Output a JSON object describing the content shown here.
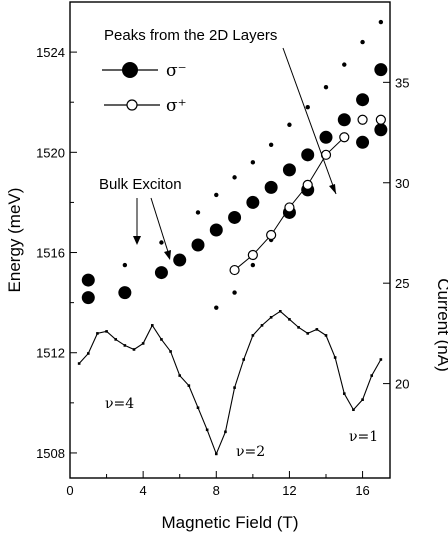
{
  "chart_data": {
    "type": "scatter",
    "xlabel": "Magnetic Field (T)",
    "ylabel": "Energy (meV)",
    "y2label": "Current (nA)",
    "xlim": [
      0,
      17.5
    ],
    "ylim": [
      1507,
      1526
    ],
    "y2lim": [
      15.3,
      39
    ],
    "x_ticks": [
      0,
      4,
      8,
      12,
      16
    ],
    "y_ticks": [
      1508,
      1512,
      1516,
      1520,
      1524
    ],
    "y2_ticks": [
      20,
      25,
      30,
      35
    ],
    "grid": false,
    "legend_position": "top-left",
    "legend": [
      {
        "symbol": "filled-circle",
        "label": "σ⁻"
      },
      {
        "symbol": "open-circle",
        "label": "σ⁺"
      }
    ],
    "annotations": {
      "peaks_2d": "Peaks from the 2D Layers",
      "bulk_exciton": "Bulk Exciton",
      "nu4": "ν=4",
      "nu2": "ν=2",
      "nu1": "ν=1"
    },
    "series": [
      {
        "name": "σ⁻",
        "axis": "left",
        "marker": "filled-circle",
        "points": [
          [
            1,
            1514.9
          ],
          [
            1,
            1514.2
          ],
          [
            3,
            1514.4
          ],
          [
            5,
            1515.2
          ],
          [
            6,
            1515.7
          ],
          [
            7,
            1516.3
          ],
          [
            8,
            1516.9
          ],
          [
            9,
            1517.4
          ],
          [
            10,
            1518.0
          ],
          [
            11,
            1518.6
          ],
          [
            12,
            1519.3
          ],
          [
            13,
            1519.9
          ],
          [
            14,
            1520.6
          ],
          [
            15,
            1521.3
          ],
          [
            16,
            1522.1
          ],
          [
            17,
            1523.3
          ],
          [
            12,
            1517.6
          ],
          [
            13,
            1518.5
          ],
          [
            16,
            1520.4
          ],
          [
            17,
            1520.9
          ]
        ]
      },
      {
        "name": "σ⁻ weak",
        "axis": "left",
        "marker": "small-filled-circle",
        "points": [
          [
            3,
            1515.5
          ],
          [
            5,
            1516.4
          ],
          [
            7,
            1517.6
          ],
          [
            8,
            1518.3
          ],
          [
            9,
            1519.0
          ],
          [
            10,
            1519.6
          ],
          [
            11,
            1520.3
          ],
          [
            12,
            1521.1
          ],
          [
            13,
            1521.8
          ],
          [
            14,
            1522.6
          ],
          [
            15,
            1523.5
          ],
          [
            16,
            1524.4
          ],
          [
            17,
            1525.2
          ],
          [
            8,
            1513.8
          ],
          [
            9,
            1514.4
          ],
          [
            10,
            1515.5
          ],
          [
            11,
            1516.5
          ]
        ]
      },
      {
        "name": "σ⁺",
        "axis": "left",
        "marker": "open-circle",
        "points": [
          [
            9,
            1515.3
          ],
          [
            10,
            1515.9
          ],
          [
            11,
            1516.7
          ],
          [
            12,
            1517.8
          ],
          [
            13,
            1518.7
          ],
          [
            14,
            1519.9
          ],
          [
            15,
            1520.6
          ],
          [
            16,
            1521.3
          ],
          [
            17,
            1521.3
          ]
        ]
      },
      {
        "name": "Current",
        "axis": "right",
        "type": "line",
        "points": [
          [
            0.5,
            21.0
          ],
          [
            1.0,
            21.5
          ],
          [
            1.5,
            22.5
          ],
          [
            2.0,
            22.6
          ],
          [
            2.5,
            22.2
          ],
          [
            3.0,
            21.9
          ],
          [
            3.5,
            21.7
          ],
          [
            4.0,
            22.0
          ],
          [
            4.5,
            22.9
          ],
          [
            5.0,
            22.2
          ],
          [
            5.5,
            21.6
          ],
          [
            6.0,
            20.4
          ],
          [
            6.5,
            19.9
          ],
          [
            7.0,
            18.8
          ],
          [
            7.5,
            17.7
          ],
          [
            8.0,
            16.5
          ],
          [
            8.5,
            17.6
          ],
          [
            9.0,
            19.8
          ],
          [
            9.5,
            21.2
          ],
          [
            10.0,
            22.4
          ],
          [
            10.5,
            22.9
          ],
          [
            11.0,
            23.3
          ],
          [
            11.5,
            23.6
          ],
          [
            12.0,
            23.2
          ],
          [
            12.5,
            22.8
          ],
          [
            13.0,
            22.5
          ],
          [
            13.5,
            22.7
          ],
          [
            14.0,
            22.4
          ],
          [
            14.5,
            21.3
          ],
          [
            15.0,
            19.5
          ],
          [
            15.5,
            18.7
          ],
          [
            16.0,
            19.2
          ],
          [
            16.5,
            20.4
          ],
          [
            17.0,
            21.2
          ]
        ]
      }
    ]
  }
}
